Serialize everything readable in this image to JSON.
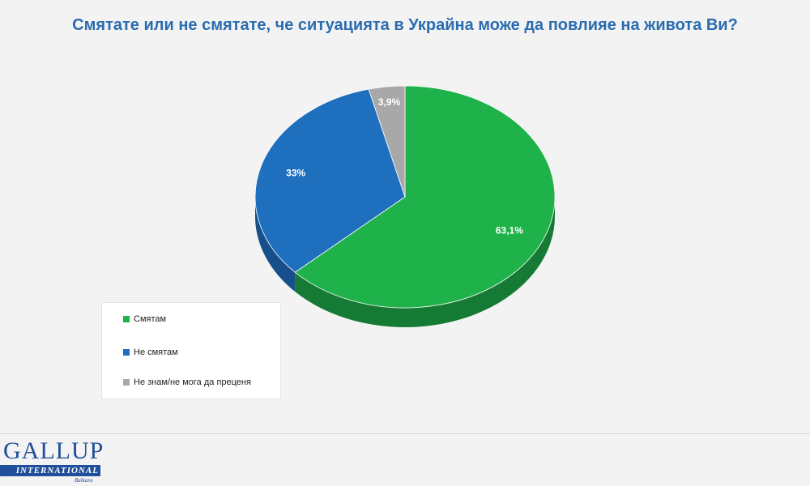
{
  "title": "Смятате или не смятате, че ситуацията в Украйна може да повлияе на живота Ви?",
  "chart_data": {
    "type": "pie",
    "title": "Смятате или не смятате, че ситуацията в Украйна може да повлияе на живота Ви?",
    "categories": [
      "Смятам",
      "Не смятам",
      "Не знам/не мога да преценя"
    ],
    "values": [
      63.1,
      33,
      3.9
    ],
    "labels": [
      "63,1%",
      "33%",
      "3,9%"
    ],
    "colors": [
      "#1fb14a",
      "#1f6fbf",
      "#a8a8a8"
    ],
    "side_colors": [
      "#157a33",
      "#164f8a",
      "#777777"
    ],
    "legend_position": "bottom-left",
    "style": "3d"
  },
  "legend": {
    "items": [
      {
        "label": "Смятам",
        "color": "#1fb14a"
      },
      {
        "label": "Не смятам",
        "color": "#1f6fbf"
      },
      {
        "label": "Не знам/не мога да преценя",
        "color": "#a8a8a8"
      }
    ]
  },
  "logo": {
    "main": "GALLUP",
    "bar": "INTERNATIONAL",
    "sub": "Balkans"
  }
}
